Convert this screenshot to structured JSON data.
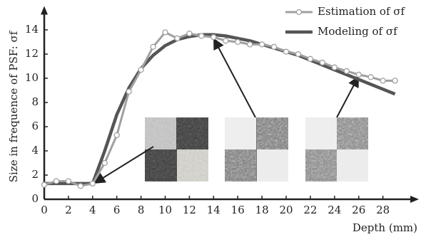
{
  "chart_data": {
    "type": "line",
    "x_label": "Depth (mm)",
    "y_label": "Size in frequence of PSF: σf",
    "xlim": [
      0,
      30.5
    ],
    "ylim": [
      0,
      15.5
    ],
    "xticks": [
      0,
      2,
      4,
      6,
      8,
      10,
      12,
      14,
      16,
      18,
      20,
      22,
      24,
      26,
      28
    ],
    "yticks": [
      0,
      2,
      4,
      6,
      8,
      10,
      12,
      14
    ],
    "legend": "top-right",
    "series": [
      {
        "name": "Estimation of σf",
        "color": "#a0a0a0",
        "marker": "circle",
        "x": [
          0,
          1,
          2,
          3,
          4,
          5,
          6,
          7,
          8,
          9,
          10,
          11,
          12,
          13,
          14,
          15,
          16,
          17,
          18,
          19,
          20,
          21,
          22,
          23,
          24,
          25,
          26,
          27,
          28,
          29
        ],
        "values": [
          1.2,
          1.5,
          1.5,
          1.1,
          1.3,
          3.0,
          5.3,
          8.9,
          10.7,
          12.6,
          13.8,
          13.3,
          13.7,
          13.5,
          13.4,
          13.1,
          13.0,
          12.8,
          12.8,
          12.6,
          12.2,
          12.0,
          11.6,
          11.3,
          10.9,
          10.6,
          10.3,
          10.1,
          9.8,
          9.8
        ]
      },
      {
        "name": "Modeling of σf",
        "color": "#555555",
        "marker": "none",
        "x": [
          0,
          4,
          5,
          6,
          7,
          8,
          9,
          10,
          11,
          12,
          13,
          14,
          15,
          16,
          17,
          18,
          19,
          20,
          21,
          22,
          23,
          24,
          25,
          26,
          27,
          28,
          29
        ],
        "values": [
          1.3,
          1.3,
          4.0,
          7.0,
          9.2,
          10.8,
          11.9,
          12.7,
          13.2,
          13.45,
          13.6,
          13.6,
          13.5,
          13.3,
          13.1,
          12.8,
          12.5,
          12.2,
          11.9,
          11.5,
          11.1,
          10.7,
          10.3,
          9.9,
          9.5,
          9.1,
          8.7
        ]
      }
    ]
  }
}
